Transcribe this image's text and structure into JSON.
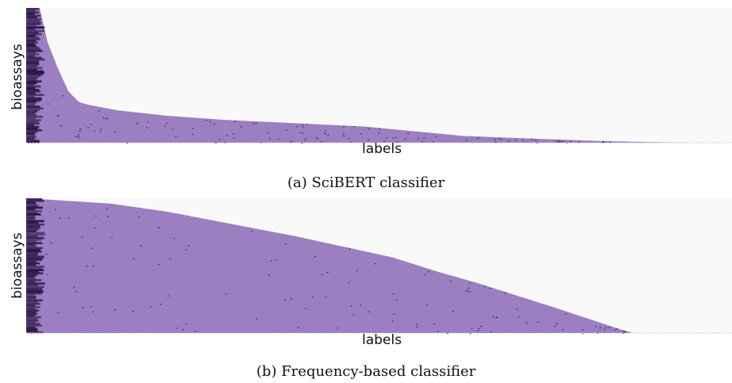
{
  "chart_data": [
    {
      "type": "heatmap",
      "caption": "(a) SciBERT classifier",
      "xlabel": "labels",
      "ylabel": "bioassays",
      "colors": {
        "background": "#f9f9f9",
        "fill": "#9b7fc0",
        "dark": "#2a1446",
        "baseline": "#c8c8c8"
      },
      "profile": {
        "x": [
          0,
          0.015,
          0.02,
          0.03,
          0.045,
          0.06,
          0.075,
          0.09,
          0.1,
          0.13,
          0.2,
          0.28,
          0.36,
          0.48,
          0.56,
          0.62,
          0.72,
          0.8,
          0.88,
          0.94,
          0.945,
          1.0
        ],
        "height": [
          1.0,
          1.0,
          0.98,
          0.75,
          0.55,
          0.38,
          0.3,
          0.28,
          0.27,
          0.24,
          0.2,
          0.17,
          0.15,
          0.12,
          0.08,
          0.05,
          0.03,
          0.015,
          0.005,
          0.0,
          0.0,
          0.0
        ]
      }
    },
    {
      "type": "heatmap",
      "caption": "(b) Frequency-based classifier",
      "xlabel": "labels",
      "ylabel": "bioassays",
      "colors": {
        "background": "#f9f9f9",
        "fill": "#9b7fc0",
        "dark": "#2a1446",
        "baseline": "#c8c8c8"
      },
      "profile": {
        "x": [
          0,
          0.06,
          0.12,
          0.2,
          0.3,
          0.38,
          0.45,
          0.52,
          0.58,
          0.64,
          0.7,
          0.76,
          0.8,
          0.84,
          0.86,
          1.0
        ],
        "height": [
          1.0,
          0.98,
          0.96,
          0.9,
          0.8,
          0.72,
          0.64,
          0.56,
          0.46,
          0.37,
          0.27,
          0.17,
          0.1,
          0.03,
          0.0,
          0.0
        ]
      }
    }
  ]
}
